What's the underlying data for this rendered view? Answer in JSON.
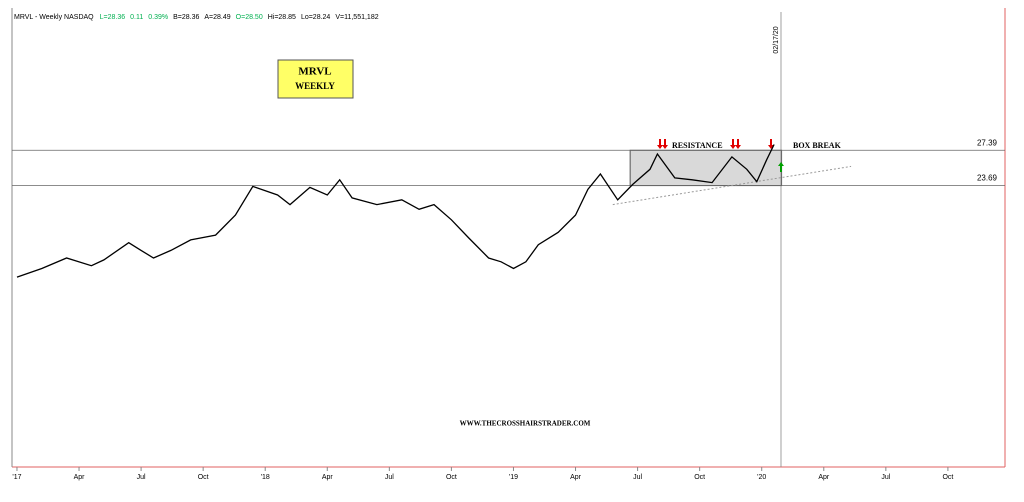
{
  "chart_data": {
    "type": "line",
    "title": "MRVL - Weekly  NASDAQ",
    "quote": [
      {
        "text": "L=28.36",
        "color": "#00b050"
      },
      {
        "text": "0.11",
        "color": "#00b050"
      },
      {
        "text": "0.39%",
        "color": "#00b050"
      },
      {
        "text": "B=28.36",
        "color": "#000000"
      },
      {
        "text": "A=28.49",
        "color": "#000000"
      },
      {
        "text": "O=28.50",
        "color": "#00b050"
      },
      {
        "text": "Hi=28.85",
        "color": "#000000"
      },
      {
        "text": "Lo=28.24",
        "color": "#000000"
      },
      {
        "text": "V=11,551,182",
        "color": "#000000"
      }
    ],
    "label_box": [
      "MRVL",
      "WEEKLY"
    ],
    "annotations": [
      "RESISTANCE",
      "BOX BREAK",
      "WWW.THECROSSHAIRSTRADER.COM"
    ],
    "marker_date": "02/17/20",
    "x": [
      2017.0,
      2017.1,
      2017.2,
      2017.3,
      2017.35,
      2017.45,
      2017.5,
      2017.55,
      2017.62,
      2017.7,
      2017.8,
      2017.88,
      2017.95,
      2018.05,
      2018.1,
      2018.18,
      2018.25,
      2018.3,
      2018.35,
      2018.45,
      2018.55,
      2018.62,
      2018.68,
      2018.75,
      2018.82,
      2018.9,
      2018.95,
      2019.0,
      2019.05,
      2019.1,
      2019.18,
      2019.25,
      2019.3,
      2019.35,
      2019.42,
      2019.48,
      2019.55,
      2019.58,
      2019.65,
      2019.72,
      2019.8,
      2019.88,
      2019.94,
      2019.98,
      2020.02,
      2020.05
    ],
    "series": [
      {
        "name": "MRVL",
        "color": "#000000",
        "values": [
          14.1,
          15.0,
          16.1,
          15.3,
          15.9,
          17.7,
          16.9,
          16.1,
          16.9,
          18.0,
          18.5,
          20.6,
          23.6,
          22.7,
          21.7,
          23.5,
          22.7,
          24.3,
          22.4,
          21.7,
          22.2,
          21.2,
          21.7,
          20.1,
          18.2,
          16.1,
          15.7,
          15.0,
          15.7,
          17.5,
          18.8,
          20.6,
          23.3,
          24.9,
          22.2,
          23.8,
          25.4,
          27.0,
          24.5,
          24.3,
          24.0,
          26.7,
          25.4,
          24.1,
          26.4,
          28.0
        ]
      }
    ],
    "levels": [
      27.39,
      23.69
    ],
    "box_x": [
      2019.47,
      2020.08
    ],
    "trendline": {
      "x": [
        2019.4,
        2020.36
      ],
      "values": [
        21.7,
        25.7
      ]
    },
    "xlim": [
      2016.98,
      2020.98
    ],
    "ylim": [
      -5.8,
      42.3
    ],
    "xticks": [
      {
        "value": 2017,
        "label": "'17"
      },
      {
        "value": 2017.25,
        "label": "Apr"
      },
      {
        "value": 2017.5,
        "label": "Jul"
      },
      {
        "value": 2017.75,
        "label": "Oct"
      },
      {
        "value": 2018,
        "label": "'18"
      },
      {
        "value": 2018.25,
        "label": "Apr"
      },
      {
        "value": 2018.5,
        "label": "Jul"
      },
      {
        "value": 2018.75,
        "label": "Oct"
      },
      {
        "value": 2019,
        "label": "'19"
      },
      {
        "value": 2019.25,
        "label": "Apr"
      },
      {
        "value": 2019.5,
        "label": "Jul"
      },
      {
        "value": 2019.75,
        "label": "Oct"
      },
      {
        "value": 2020,
        "label": "'20"
      },
      {
        "value": 2020.25,
        "label": "Apr"
      },
      {
        "value": 2020.5,
        "label": "Jul"
      },
      {
        "value": 2020.75,
        "label": "Oct"
      }
    ]
  }
}
